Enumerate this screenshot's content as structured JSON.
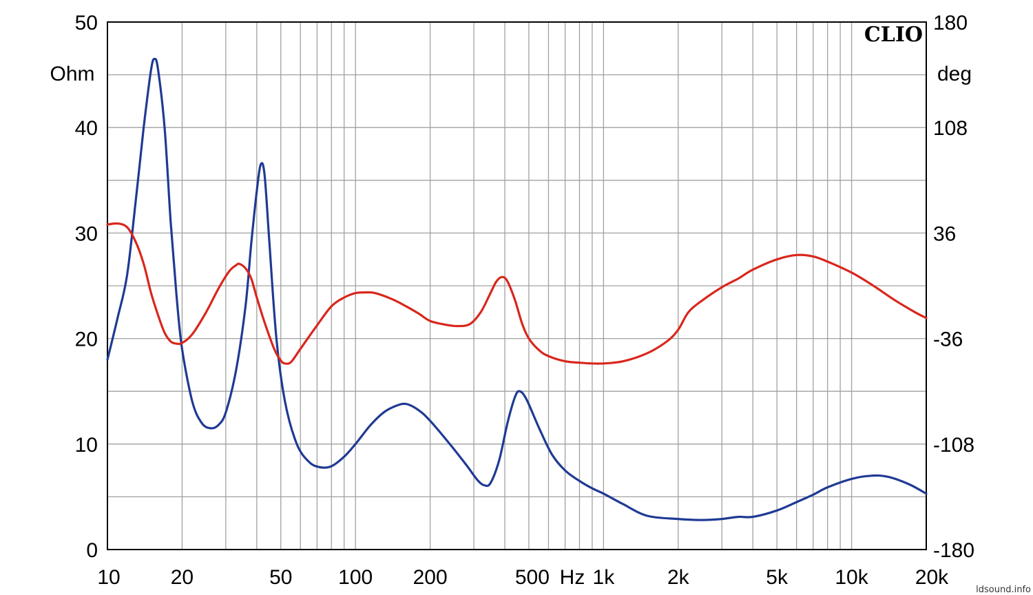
{
  "chart_data": {
    "type": "line",
    "brand": "CLIO",
    "watermark": "ldsound.info",
    "x_scale": "log",
    "xlim": [
      10,
      20000
    ],
    "x_unit": "Hz",
    "x_ticks": [
      {
        "value": 10,
        "label": "10"
      },
      {
        "value": 20,
        "label": "20"
      },
      {
        "value": 50,
        "label": "50"
      },
      {
        "value": 100,
        "label": "100"
      },
      {
        "value": 200,
        "label": "200"
      },
      {
        "value": 500,
        "label": "500"
      },
      {
        "value": 1000,
        "label": "1k"
      },
      {
        "value": 2000,
        "label": "2k"
      },
      {
        "value": 5000,
        "label": "5k"
      },
      {
        "value": 10000,
        "label": "10k"
      },
      {
        "value": 20000,
        "label": "20k"
      }
    ],
    "y_left": {
      "unit": "Ohm",
      "lim": [
        0,
        50
      ],
      "ticks": [
        "0",
        "10",
        "20",
        "30",
        "40",
        "50"
      ],
      "minor_step": 5
    },
    "y_right": {
      "unit": "deg",
      "lim": [
        -180,
        180
      ],
      "ticks": [
        "-180",
        "-108",
        "-36",
        "36",
        "108",
        "180"
      ]
    },
    "grid": true,
    "series": [
      {
        "axis": "left",
        "color": "#1f3a93",
        "points": [
          [
            10,
            18
          ],
          [
            11,
            22
          ],
          [
            12,
            26
          ],
          [
            13,
            33
          ],
          [
            14,
            40
          ],
          [
            15,
            45.5
          ],
          [
            15.5,
            46.5
          ],
          [
            16,
            45.5
          ],
          [
            17,
            40
          ],
          [
            18,
            31
          ],
          [
            19,
            24
          ],
          [
            20,
            19
          ],
          [
            22,
            14
          ],
          [
            24,
            12
          ],
          [
            26,
            11.5
          ],
          [
            28,
            11.8
          ],
          [
            30,
            13
          ],
          [
            33,
            17
          ],
          [
            36,
            23
          ],
          [
            38,
            29
          ],
          [
            40,
            34
          ],
          [
            41.5,
            36.5
          ],
          [
            43,
            35.5
          ],
          [
            45,
            29
          ],
          [
            48,
            20
          ],
          [
            52,
            14
          ],
          [
            58,
            10
          ],
          [
            65,
            8.3
          ],
          [
            72,
            7.8
          ],
          [
            80,
            7.9
          ],
          [
            90,
            8.8
          ],
          [
            100,
            10
          ],
          [
            115,
            11.8
          ],
          [
            130,
            13
          ],
          [
            145,
            13.6
          ],
          [
            160,
            13.8
          ],
          [
            180,
            13.2
          ],
          [
            200,
            12.2
          ],
          [
            240,
            10
          ],
          [
            280,
            8
          ],
          [
            310,
            6.6
          ],
          [
            330,
            6.1
          ],
          [
            350,
            6.3
          ],
          [
            380,
            8.5
          ],
          [
            410,
            12
          ],
          [
            440,
            14.5
          ],
          [
            460,
            15
          ],
          [
            490,
            14.2
          ],
          [
            550,
            11.5
          ],
          [
            620,
            9
          ],
          [
            700,
            7.5
          ],
          [
            800,
            6.5
          ],
          [
            900,
            5.8
          ],
          [
            1000,
            5.3
          ],
          [
            1200,
            4.3
          ],
          [
            1500,
            3.2
          ],
          [
            2000,
            2.9
          ],
          [
            2500,
            2.8
          ],
          [
            3000,
            2.9
          ],
          [
            3500,
            3.1
          ],
          [
            4000,
            3.1
          ],
          [
            5000,
            3.7
          ],
          [
            6000,
            4.5
          ],
          [
            7000,
            5.2
          ],
          [
            8000,
            5.9
          ],
          [
            10000,
            6.7
          ],
          [
            12000,
            7
          ],
          [
            14000,
            6.9
          ],
          [
            17000,
            6.2
          ],
          [
            20000,
            5.3
          ]
        ]
      },
      {
        "axis": "right",
        "color": "#d9261c",
        "points": [
          [
            10,
            41.8
          ],
          [
            11,
            42.5
          ],
          [
            12,
            40
          ],
          [
            13,
            30
          ],
          [
            14,
            15
          ],
          [
            15,
            -5
          ],
          [
            16,
            -20
          ],
          [
            17,
            -32
          ],
          [
            18,
            -38
          ],
          [
            19,
            -39.5
          ],
          [
            20,
            -39
          ],
          [
            22,
            -33
          ],
          [
            25,
            -18
          ],
          [
            28,
            -2
          ],
          [
            31,
            10
          ],
          [
            33,
            14
          ],
          [
            34,
            15
          ],
          [
            36,
            12
          ],
          [
            38,
            5
          ],
          [
            40,
            -8
          ],
          [
            43,
            -25
          ],
          [
            47,
            -43
          ],
          [
            50,
            -51
          ],
          [
            52,
            -53
          ],
          [
            55,
            -52
          ],
          [
            60,
            -43
          ],
          [
            70,
            -27
          ],
          [
            80,
            -14
          ],
          [
            90,
            -8
          ],
          [
            100,
            -5
          ],
          [
            110,
            -4.5
          ],
          [
            120,
            -5
          ],
          [
            140,
            -9
          ],
          [
            160,
            -14
          ],
          [
            180,
            -19
          ],
          [
            200,
            -24
          ],
          [
            230,
            -26.5
          ],
          [
            260,
            -27.5
          ],
          [
            290,
            -26
          ],
          [
            320,
            -18
          ],
          [
            350,
            -5
          ],
          [
            370,
            3
          ],
          [
            390,
            6
          ],
          [
            410,
            3
          ],
          [
            440,
            -10
          ],
          [
            470,
            -26
          ],
          [
            500,
            -36
          ],
          [
            550,
            -44
          ],
          [
            600,
            -48
          ],
          [
            700,
            -51.5
          ],
          [
            800,
            -52.5
          ],
          [
            900,
            -53
          ],
          [
            1000,
            -53
          ],
          [
            1200,
            -51.5
          ],
          [
            1500,
            -46
          ],
          [
            1800,
            -38
          ],
          [
            2000,
            -30
          ],
          [
            2200,
            -18
          ],
          [
            2500,
            -10
          ],
          [
            3000,
            -1
          ],
          [
            3500,
            5
          ],
          [
            4000,
            11
          ],
          [
            5000,
            18
          ],
          [
            6000,
            21
          ],
          [
            7000,
            20
          ],
          [
            8000,
            16.5
          ],
          [
            10000,
            9
          ],
          [
            12000,
            1
          ],
          [
            15000,
            -10
          ],
          [
            18000,
            -18
          ],
          [
            20000,
            -22
          ]
        ]
      }
    ]
  }
}
